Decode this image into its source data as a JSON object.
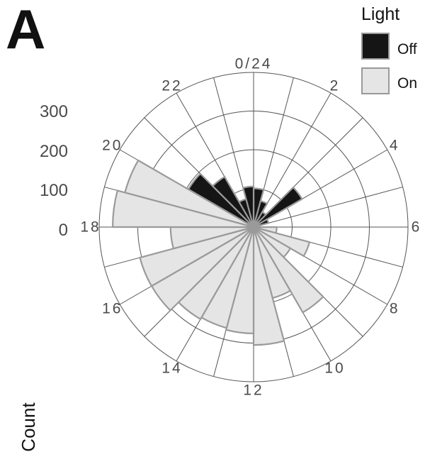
{
  "panel_label": "A",
  "chart_data": {
    "type": "bar",
    "subtype": "polar-rose",
    "title": "",
    "ylabel": "Count",
    "y_ticks": [
      0,
      100,
      200,
      300
    ],
    "ylim": [
      0,
      400
    ],
    "angle_ticks": [
      "0/24",
      "2",
      "4",
      "6",
      "8",
      "10",
      "12",
      "14",
      "16",
      "18",
      "20",
      "22"
    ],
    "angle_tick_hours": [
      0,
      2,
      4,
      6,
      8,
      10,
      12,
      14,
      16,
      18,
      20,
      22
    ],
    "legend": {
      "title": "Light",
      "placement": "top-right",
      "entries": [
        "Off",
        "On"
      ]
    },
    "bin_hours": 1,
    "series": [
      {
        "name": "Off",
        "color": "#151515",
        "bins": [
          {
            "hour": 0,
            "value": 100
          },
          {
            "hour": 1,
            "value": 70
          },
          {
            "hour": 2,
            "value": 45
          },
          {
            "hour": 3,
            "value": 145
          },
          {
            "hour": 4,
            "value": 40
          },
          {
            "hour": 5,
            "value": 15
          },
          {
            "hour": 20,
            "value": 195
          },
          {
            "hour": 21,
            "value": 150
          },
          {
            "hour": 22,
            "value": 75
          },
          {
            "hour": 23,
            "value": 105
          }
        ]
      },
      {
        "name": "On",
        "color": "#e5e5e5",
        "bins": [
          {
            "hour": 6,
            "value": 60
          },
          {
            "hour": 7,
            "value": 150
          },
          {
            "hour": 8,
            "value": 110
          },
          {
            "hour": 9,
            "value": 255
          },
          {
            "hour": 10,
            "value": 190
          },
          {
            "hour": 11,
            "value": 305
          },
          {
            "hour": 12,
            "value": 275
          },
          {
            "hour": 13,
            "value": 270
          },
          {
            "hour": 14,
            "value": 275
          },
          {
            "hour": 15,
            "value": 305
          },
          {
            "hour": 16,
            "value": 305
          },
          {
            "hour": 17,
            "value": 215
          },
          {
            "hour": 18,
            "value": 365
          },
          {
            "hour": 19,
            "value": 345
          }
        ]
      }
    ],
    "grid": true
  }
}
